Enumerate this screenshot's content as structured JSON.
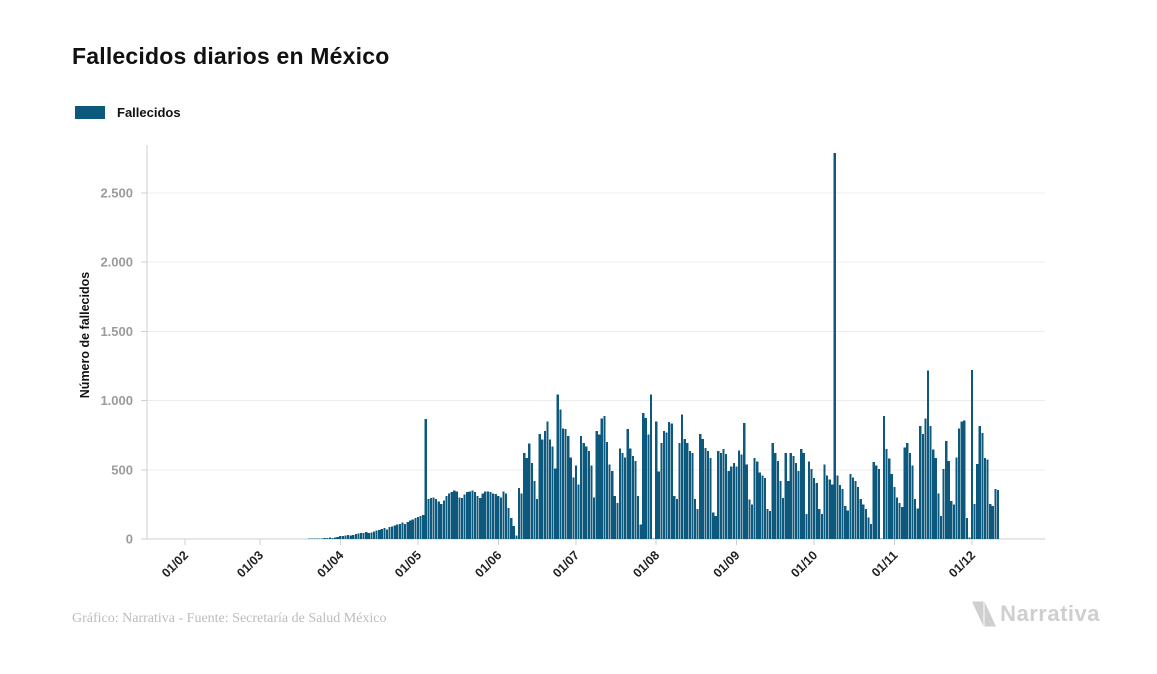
{
  "title": "Fallecidos diarios en México",
  "legend": {
    "label": "Fallecidos"
  },
  "footer": {
    "credit": "Gráfico: Narrativa - Fuente: Secretaría de Salud México",
    "logo_text": "Narrativa"
  },
  "colors": {
    "bar": "#0d597d",
    "grid": "#ececec",
    "axis": "#cfcfcf",
    "y_tick_text": "#9b9b9b",
    "x_tick_text": "#222222",
    "title_text": "#111111",
    "footer_text": "#bcbcbc",
    "logo": "#cfcfcf"
  },
  "chart_data": {
    "type": "bar",
    "title": "Fallecidos diarios en México",
    "series_name": "Fallecidos",
    "ylabel": "Número de fallecidos",
    "xlabel": "",
    "ylim": [
      0,
      2850
    ],
    "grid": "horizontal",
    "legend_position": "top-left",
    "y_ticks": [
      {
        "value": 0,
        "label": "0"
      },
      {
        "value": 500,
        "label": "500"
      },
      {
        "value": 1000,
        "label": "1.000"
      },
      {
        "value": 1500,
        "label": "1.500"
      },
      {
        "value": 2000,
        "label": "2.000"
      },
      {
        "value": 2500,
        "label": "2.500"
      }
    ],
    "x_ticks": [
      {
        "label": "01/02",
        "day_index": 0
      },
      {
        "label": "01/03",
        "day_index": 29
      },
      {
        "label": "01/04",
        "day_index": 60
      },
      {
        "label": "01/05",
        "day_index": 90
      },
      {
        "label": "01/06",
        "day_index": 121
      },
      {
        "label": "01/07",
        "day_index": 151
      },
      {
        "label": "01/08",
        "day_index": 182
      },
      {
        "label": "01/09",
        "day_index": 213
      },
      {
        "label": "01/10",
        "day_index": 243
      },
      {
        "label": "01/11",
        "day_index": 274
      },
      {
        "label": "01/12",
        "day_index": 304
      }
    ],
    "values": [
      0,
      0,
      0,
      0,
      0,
      0,
      0,
      0,
      0,
      0,
      0,
      0,
      0,
      0,
      0,
      0,
      0,
      0,
      0,
      0,
      0,
      0,
      0,
      0,
      0,
      0,
      0,
      0,
      0,
      0,
      0,
      0,
      0,
      0,
      0,
      0,
      0,
      0,
      0,
      0,
      0,
      0,
      0,
      0,
      0,
      0,
      1,
      1,
      2,
      2,
      2,
      3,
      4,
      5,
      7,
      8,
      10,
      9,
      12,
      16,
      20,
      22,
      25,
      28,
      24,
      30,
      35,
      38,
      42,
      45,
      50,
      44,
      48,
      55,
      60,
      66,
      72,
      78,
      70,
      85,
      92,
      98,
      105,
      110,
      118,
      108,
      122,
      132,
      140,
      150,
      158,
      168,
      175,
      866,
      290,
      295,
      300,
      290,
      272,
      252,
      280,
      310,
      330,
      340,
      350,
      345,
      300,
      295,
      320,
      340,
      345,
      350,
      340,
      310,
      295,
      330,
      345,
      345,
      340,
      330,
      325,
      310,
      300,
      345,
      330,
      225,
      150,
      95,
      25,
      370,
      330,
      620,
      585,
      690,
      550,
      420,
      290,
      760,
      720,
      780,
      850,
      720,
      670,
      510,
      1045,
      935,
      800,
      795,
      745,
      590,
      445,
      530,
      395,
      745,
      695,
      670,
      635,
      530,
      300,
      780,
      755,
      870,
      887,
      700,
      540,
      490,
      310,
      260,
      655,
      620,
      590,
      795,
      655,
      600,
      565,
      310,
      105,
      910,
      875,
      755,
      1045,
      5,
      850,
      487,
      695,
      779,
      768,
      847,
      835,
      310,
      288,
      695,
      900,
      721,
      695,
      635,
      623,
      288,
      216,
      757,
      721,
      659,
      635,
      587,
      190,
      167,
      635,
      623,
      650,
      615,
      490,
      525,
      550,
      525,
      640,
      610,
      838,
      540,
      285,
      250,
      585,
      560,
      480,
      460,
      442,
      215,
      203,
      695,
      623,
      563,
      418,
      298,
      623,
      420,
      620,
      598,
      550,
      490,
      650,
      620,
      180,
      560,
      505,
      442,
      405,
      215,
      180,
      540,
      460,
      430,
      395,
      2789,
      460,
      390,
      360,
      240,
      205,
      470,
      445,
      420,
      375,
      290,
      250,
      215,
      155,
      110,
      555,
      530,
      505,
      4,
      887,
      650,
      580,
      470,
      375,
      300,
      260,
      230,
      660,
      695,
      620,
      530,
      290,
      220,
      815,
      760,
      870,
      1218,
      815,
      647,
      585,
      330,
      165,
      505,
      707,
      563,
      275,
      250,
      590,
      800,
      850,
      855,
      150,
      10,
      1220,
      252,
      541,
      815,
      765,
      587,
      575,
      252,
      240,
      360,
      355
    ]
  }
}
